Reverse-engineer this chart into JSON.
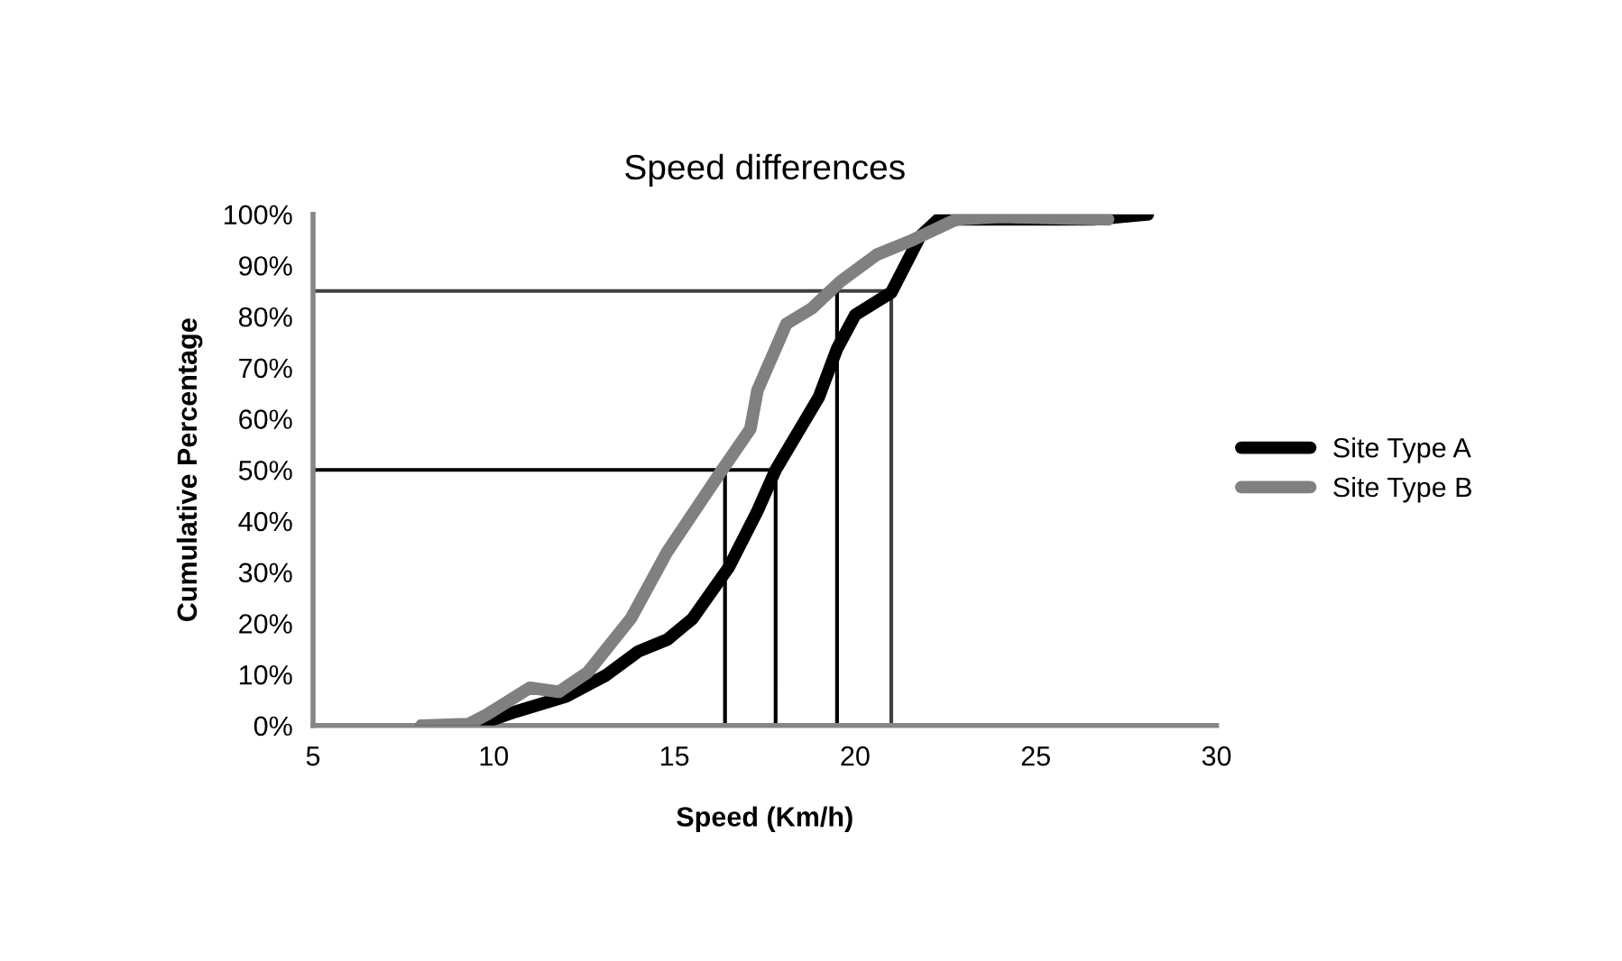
{
  "chart_data": {
    "type": "line",
    "title": "Speed differences",
    "xlabel": "Speed (Km/h)",
    "ylabel": "Cumulative Percentage",
    "xlim": [
      5,
      30
    ],
    "xticks": [
      5,
      10,
      15,
      20,
      25,
      30
    ],
    "ylim": [
      0,
      100
    ],
    "yticks": [
      {
        "value": 0,
        "label": "0%"
      },
      {
        "value": 10,
        "label": "10%"
      },
      {
        "value": 20,
        "label": "20%"
      },
      {
        "value": 30,
        "label": "30%"
      },
      {
        "value": 40,
        "label": "40%"
      },
      {
        "value": 50,
        "label": "50%"
      },
      {
        "value": 60,
        "label": "60%"
      },
      {
        "value": 70,
        "label": "70%"
      },
      {
        "value": 80,
        "label": "80%"
      },
      {
        "value": 90,
        "label": "90%"
      },
      {
        "value": 100,
        "label": "100%"
      }
    ],
    "grid": false,
    "legend": "right",
    "marker": "none",
    "line_style": "solid",
    "series": [
      {
        "color": "#404040",
        "x": [
          5,
          21.0,
          21.0
        ],
        "values": [
          85,
          85,
          0
        ]
      },
      {
        "color": "#000000",
        "x": [
          5,
          17.8,
          17.8
        ],
        "values": [
          50,
          50,
          0
        ]
      },
      {
        "color": "#000000",
        "x": [
          16.4,
          16.4
        ],
        "values": [
          50,
          0
        ]
      },
      {
        "color": "#000000",
        "x": [
          19.5,
          19.5
        ],
        "values": [
          85,
          0
        ]
      },
      {
        "name": "Site Type A",
        "color": "#000000",
        "x": [
          8.0,
          9.5,
          10.6,
          12.0,
          13.1,
          14.0,
          14.8,
          15.5,
          16.5,
          17.3,
          17.8,
          19.0,
          19.5,
          20.0,
          21.0,
          21.8,
          22.3,
          24.0,
          26.6,
          28.1
        ],
        "values": [
          0,
          0,
          2.7,
          5.7,
          9.8,
          14.5,
          16.8,
          20.9,
          30.9,
          42,
          50,
          64.3,
          73.7,
          80.3,
          84.7,
          95.7,
          99,
          99,
          99,
          100
        ]
      },
      {
        "name": "Site Type B",
        "color": "#808080",
        "x": [
          8.0,
          9.3,
          9.8,
          11.0,
          11.8,
          12.6,
          13.8,
          14.8,
          16.3,
          17.1,
          17.3,
          18.1,
          18.8,
          19.6,
          20.6,
          21.6,
          22.8,
          24.0,
          27.0
        ],
        "values": [
          0,
          0.3,
          2.1,
          7.4,
          6.6,
          10.4,
          21,
          34,
          49.8,
          58,
          65.6,
          78.6,
          81.6,
          86.9,
          92.1,
          95,
          99,
          99.5,
          99
        ]
      }
    ]
  }
}
